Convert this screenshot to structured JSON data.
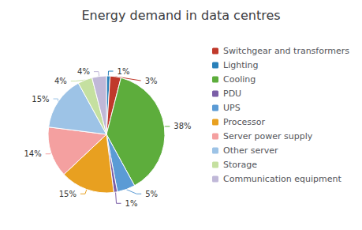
{
  "chart_data": {
    "type": "pie",
    "title": "Energy demand in data centres",
    "categories": [
      "Lighting",
      "Switchgear and transformers",
      "Cooling",
      "UPS",
      "PDU",
      "Processor",
      "Server power supply",
      "Other server",
      "Storage",
      "Communication equipment"
    ],
    "values": [
      1,
      3,
      38,
      5,
      1,
      15,
      14,
      15,
      4,
      4
    ],
    "value_labels": [
      "1%",
      "3%",
      "38%",
      "5%",
      "1%",
      "15%",
      "14%",
      "15%",
      "4%",
      "4%"
    ],
    "data_labels": true,
    "colors": [
      "#2980B9",
      "#C0392B",
      "#5DAD3C",
      "#5B9BD5",
      "#7B5EA7",
      "#E8A020",
      "#F4A0A0",
      "#9DC3E6",
      "#C5E0A0",
      "#C0B8D8"
    ],
    "legend": "right",
    "legend_labels": [
      "Switchgear and transformers",
      "Lighting",
      "Cooling",
      "PDU",
      "UPS",
      "Processor",
      "Server power supply",
      "Other server",
      "Storage",
      "Communication equipment"
    ]
  }
}
